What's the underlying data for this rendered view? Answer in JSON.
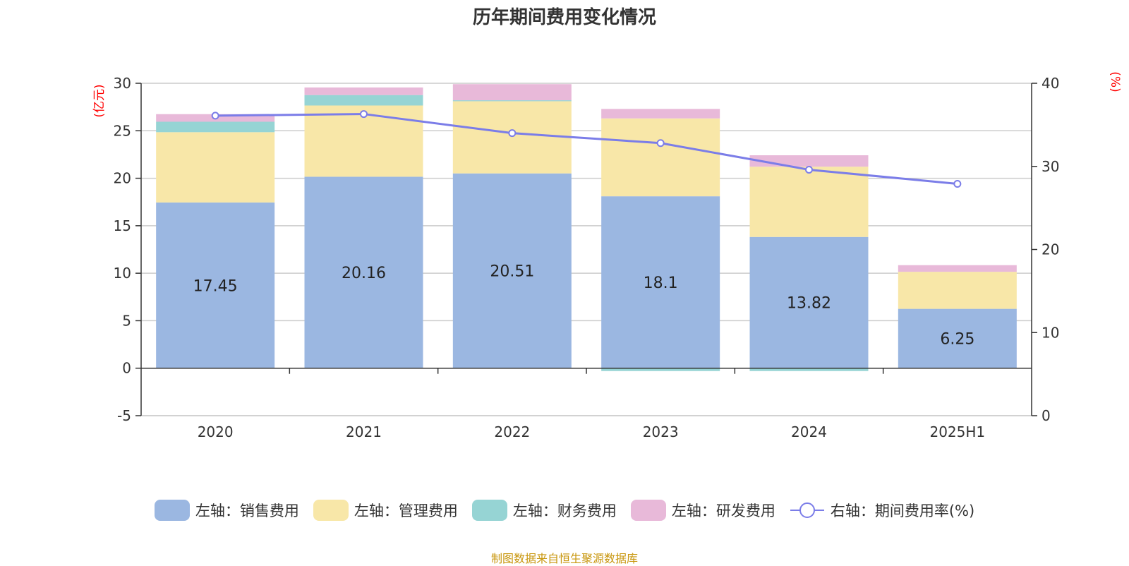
{
  "chart_data": {
    "type": "bar",
    "title": "历年期间费用变化情况",
    "categories": [
      "2020",
      "2021",
      "2022",
      "2023",
      "2024",
      "2025H1"
    ],
    "stacked": true,
    "left_axis": {
      "unit": "(亿元)",
      "ylim": [
        -5,
        30
      ],
      "ticks": [
        "30",
        "25",
        "20",
        "15",
        "10",
        "5",
        "0",
        "-5"
      ]
    },
    "right_axis": {
      "unit": "(%)",
      "ylim": [
        0,
        40
      ],
      "ticks": [
        "40",
        "30",
        "20",
        "10",
        "0"
      ]
    },
    "series": [
      {
        "name": "左轴：销售费用",
        "axis": "left",
        "color": "#9bb7e1",
        "values": [
          17.45,
          20.16,
          20.51,
          18.1,
          13.82,
          6.25
        ],
        "labels": [
          "17.45",
          "20.16",
          "20.51",
          "18.1",
          "13.82",
          "6.25"
        ]
      },
      {
        "name": "左轴：管理费用",
        "axis": "left",
        "color": "#f8e7a8",
        "values": [
          7.4,
          7.5,
          7.6,
          8.2,
          7.4,
          3.9
        ]
      },
      {
        "name": "左轴：财务费用",
        "axis": "left",
        "color": "#96d4d4",
        "values": [
          1.1,
          1.1,
          0.1,
          -0.3,
          -0.3,
          0.0
        ]
      },
      {
        "name": "左轴：研发费用",
        "axis": "left",
        "color": "#e8b9d9",
        "values": [
          0.8,
          0.8,
          1.7,
          1.0,
          1.2,
          0.7
        ]
      },
      {
        "name": "右轴：期间费用率(%)",
        "axis": "right",
        "type": "line",
        "color": "#7b7de8",
        "values": [
          36.1,
          36.3,
          34.0,
          32.8,
          29.6,
          27.9
        ]
      }
    ],
    "grid": true,
    "legend_position": "bottom"
  },
  "source_note": "制图数据来自恒生聚源数据库"
}
